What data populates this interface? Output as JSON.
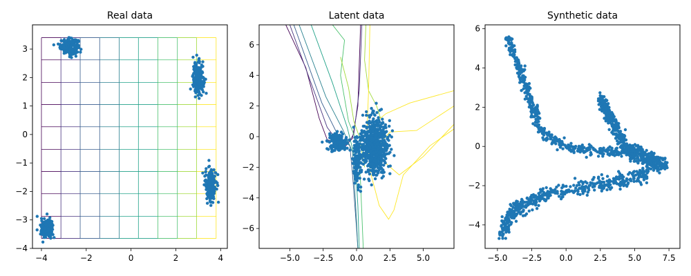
{
  "colors": {
    "points": "#1f77b4",
    "grid_palette": [
      "#440154",
      "#46327e",
      "#365c8d",
      "#277f8e",
      "#1fa187",
      "#4ac16d",
      "#a0da39",
      "#fde725"
    ]
  },
  "chart_data": [
    {
      "type": "scatter",
      "title": "Real data",
      "xlabel": "",
      "ylabel": "",
      "xlim": [
        -4.4,
        4.3
      ],
      "ylim": [
        -4,
        3.85
      ],
      "xticks": [
        -4,
        -2,
        0,
        2,
        4
      ],
      "xtick_labels": [
        "−4",
        "−2",
        "0",
        "2",
        "4"
      ],
      "yticks": [
        -4,
        -3,
        -2,
        -1,
        0,
        1,
        2,
        3
      ],
      "ytick_labels": [
        "−4",
        "−3",
        "−2",
        "−1",
        "0",
        "1",
        "2",
        "3"
      ],
      "grid_lines_x": [
        -4.0,
        -3.13,
        -2.27,
        -1.4,
        -0.53,
        0.33,
        1.2,
        2.07,
        2.93,
        3.8
      ],
      "grid_lines_y": [
        -3.65,
        -2.87,
        -2.08,
        -1.3,
        -0.52,
        0.27,
        1.05,
        1.83,
        2.62,
        3.4
      ],
      "clusters": [
        {
          "label": "top-left",
          "center": [
            -2.75,
            3.1
          ],
          "spread": [
            0.2,
            0.13
          ],
          "count": 220
        },
        {
          "label": "right-upper",
          "center": [
            3.0,
            1.95
          ],
          "spread": [
            0.12,
            0.28
          ],
          "count": 220
        },
        {
          "label": "right-lower",
          "center": [
            3.55,
            -1.75
          ],
          "spread": [
            0.12,
            0.3
          ],
          "count": 220
        },
        {
          "label": "bottom-left",
          "center": [
            -3.75,
            -3.3
          ],
          "spread": [
            0.14,
            0.16
          ],
          "count": 200
        }
      ]
    },
    {
      "type": "scatter",
      "title": "Latent data",
      "xlabel": "",
      "ylabel": "",
      "xlim": [
        -7.3,
        7.3
      ],
      "ylim": [
        -7.3,
        7.3
      ],
      "xticks": [
        -5,
        -2.5,
        0,
        2.5,
        5
      ],
      "xtick_labels": [
        "−5.0",
        "−2.5",
        "0.0",
        "2.5",
        "5.0"
      ],
      "yticks": [
        -6,
        -4,
        -2,
        0,
        2,
        4,
        6
      ],
      "ytick_labels": [
        "−6",
        "−4",
        "−2",
        "0",
        "2",
        "4",
        "6"
      ],
      "clusters": [
        {
          "label": "main blob",
          "center": [
            1.3,
            -0.6
          ],
          "spread": [
            0.5,
            0.9
          ],
          "count": 700
        },
        {
          "label": "left arm",
          "center": [
            -1.4,
            -0.4
          ],
          "spread": [
            0.35,
            0.3
          ],
          "count": 150
        },
        {
          "label": "stem",
          "center": [
            0.0,
            -1.6
          ],
          "spread": [
            0.15,
            0.8
          ],
          "count": 120
        }
      ],
      "contours": [
        {
          "c": 0,
          "pts": [
            [
              -5.3,
              7.3
            ],
            [
              -3.8,
              4.5
            ],
            [
              -2.8,
              1.2
            ],
            [
              -2.2,
              -0.2
            ],
            [
              -0.8,
              -0.6
            ],
            [
              -0.3,
              -0.1
            ],
            [
              0.1,
              2.0
            ],
            [
              0.3,
              7.3
            ]
          ]
        },
        {
          "c": 1,
          "pts": [
            [
              -5.0,
              7.3
            ],
            [
              -3.2,
              3.0
            ],
            [
              -2.2,
              0.6
            ],
            [
              -1.5,
              -0.2
            ],
            [
              -0.6,
              -0.4
            ],
            [
              -0.2,
              0.2
            ],
            [
              0.2,
              3.0
            ],
            [
              0.4,
              7.3
            ]
          ]
        },
        {
          "c": 2,
          "pts": [
            [
              -4.7,
              7.3
            ],
            [
              -2.6,
              2.2
            ],
            [
              -1.4,
              0.1
            ],
            [
              -0.5,
              -0.6
            ],
            [
              -0.3,
              -2.5
            ],
            [
              0.0,
              -6.0
            ],
            [
              0.1,
              -7.3
            ]
          ]
        },
        {
          "c": 3,
          "pts": [
            [
              -4.3,
              7.3
            ],
            [
              -2.3,
              2.6
            ],
            [
              -1.0,
              0.4
            ],
            [
              -0.3,
              -1.0
            ],
            [
              -0.1,
              -4.0
            ],
            [
              0.1,
              -7.3
            ]
          ]
        },
        {
          "c": 4,
          "pts": [
            [
              -3.4,
              7.3
            ],
            [
              -1.8,
              3.5
            ],
            [
              -0.7,
              0.6
            ],
            [
              -0.1,
              -1.5
            ],
            [
              0.1,
              -4.5
            ],
            [
              0.2,
              -7.3
            ]
          ]
        },
        {
          "c": 5,
          "pts": [
            [
              -1.8,
              7.3
            ],
            [
              -0.9,
              6.3
            ],
            [
              -1.2,
              4.0
            ],
            [
              -0.6,
              1.0
            ],
            [
              0.1,
              -0.5
            ],
            [
              0.3,
              -3.0
            ],
            [
              0.5,
              -7.3
            ]
          ]
        },
        {
          "c": 6,
          "pts": [
            [
              -1.2,
              5.2
            ],
            [
              -0.6,
              3.2
            ],
            [
              -0.2,
              1.0
            ],
            [
              0.2,
              0.0
            ],
            [
              0.6,
              -2.0
            ]
          ]
        },
        {
          "c": 6,
          "pts": [
            [
              0.7,
              7.3
            ],
            [
              0.6,
              5.0
            ],
            [
              0.9,
              3.0
            ],
            [
              1.5,
              2.0
            ],
            [
              1.8,
              1.2
            ]
          ]
        },
        {
          "c": 7,
          "pts": [
            [
              7.3,
              3.0
            ],
            [
              4.0,
              2.2
            ],
            [
              2.2,
              1.5
            ],
            [
              1.5,
              1.0
            ]
          ]
        },
        {
          "c": 7,
          "pts": [
            [
              7.3,
              2.0
            ],
            [
              4.5,
              0.4
            ],
            [
              2.5,
              0.3
            ],
            [
              1.8,
              -0.4
            ]
          ]
        },
        {
          "c": 7,
          "pts": [
            [
              7.3,
              0.8
            ],
            [
              5.0,
              -1.3
            ],
            [
              3.2,
              -2.5
            ],
            [
              2.0,
              -1.6
            ]
          ]
        },
        {
          "c": 7,
          "pts": [
            [
              1.0,
              7.3
            ],
            [
              0.9,
              3.0
            ],
            [
              0.8,
              0.8
            ],
            [
              1.0,
              -2.2
            ],
            [
              1.7,
              -4.5
            ],
            [
              2.4,
              -5.4
            ],
            [
              2.8,
              -4.8
            ],
            [
              3.5,
              -2.5
            ],
            [
              5.5,
              -0.6
            ],
            [
              7.3,
              0.5
            ]
          ]
        }
      ]
    },
    {
      "type": "scatter",
      "title": "Synthetic data",
      "xlabel": "",
      "ylabel": "",
      "xlim": [
        -5.9,
        8.3
      ],
      "ylim": [
        -5.2,
        6.2
      ],
      "xticks": [
        -5,
        -2.5,
        0,
        2.5,
        5,
        7.5
      ],
      "xtick_labels": [
        "−5.0",
        "−2.5",
        "0.0",
        "2.5",
        "5.0",
        "7.5"
      ],
      "yticks": [
        -4,
        -2,
        0,
        2,
        4,
        6
      ],
      "ytick_labels": [
        "−4",
        "−2",
        "0",
        "2",
        "4",
        "6"
      ],
      "curves": [
        {
          "label": "lower-left arm",
          "pts": [
            [
              -4.7,
              -4.5
            ],
            [
              -4.2,
              -3.6
            ],
            [
              -3.2,
              -3.0
            ],
            [
              -1.5,
              -2.5
            ],
            [
              1.0,
              -2.1
            ],
            [
              3.0,
              -1.9
            ],
            [
              5.0,
              -1.6
            ],
            [
              6.2,
              -1.3
            ]
          ],
          "width": 0.35,
          "count": 500
        },
        {
          "label": "upper arm",
          "pts": [
            [
              -4.3,
              5.6
            ],
            [
              -3.7,
              4.5
            ],
            [
              -3.1,
              3.4
            ],
            [
              -2.5,
              2.2
            ],
            [
              -2.0,
              1.0
            ],
            [
              -1.0,
              0.3
            ],
            [
              0.5,
              -0.1
            ],
            [
              2.0,
              -0.2
            ],
            [
              3.5,
              -0.3
            ],
            [
              5.0,
              -0.1
            ],
            [
              6.5,
              -0.6
            ],
            [
              7.3,
              -1.0
            ]
          ],
          "width": 0.25,
          "count": 600
        },
        {
          "label": "right branch",
          "pts": [
            [
              2.5,
              2.4
            ],
            [
              2.9,
              1.9
            ],
            [
              3.3,
              1.4
            ],
            [
              3.8,
              0.6
            ],
            [
              4.5,
              -0.2
            ],
            [
              5.5,
              -0.6
            ],
            [
              6.8,
              -1.1
            ]
          ],
          "width": 0.3,
          "count": 450
        }
      ]
    }
  ]
}
